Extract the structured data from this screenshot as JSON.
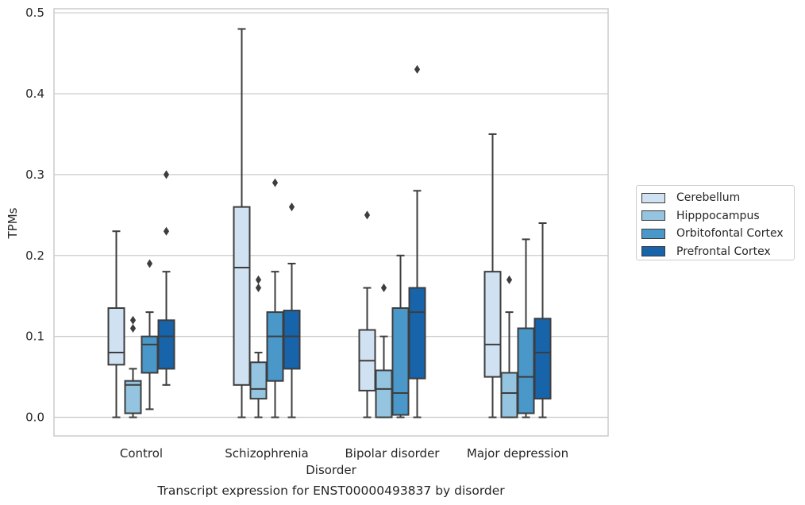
{
  "chart_data": {
    "type": "box",
    "caption": "Transcript expression for ENST00000493837 by disorder",
    "xlabel": "Disorder",
    "ylabel": "TPMs",
    "ylim": [
      -0.023,
      0.505
    ],
    "yticks": [
      0.0,
      0.1,
      0.2,
      0.3,
      0.4,
      0.5
    ],
    "ytick_labels": [
      "0.0",
      "0.1",
      "0.2",
      "0.3",
      "0.4",
      "0.5"
    ],
    "grid": "horizontal",
    "legend_position": "right-outside",
    "categories": [
      "Control",
      "Schizophrenia",
      "Bipolar disorder",
      "Major depression"
    ],
    "series": [
      {
        "name": "Cerebellum",
        "color": "#d0e1f2",
        "boxes": [
          {
            "whisker_low": 0.0,
            "q1": 0.065,
            "median": 0.08,
            "q3": 0.135,
            "whisker_high": 0.23,
            "outliers": []
          },
          {
            "whisker_low": 0.0,
            "q1": 0.04,
            "median": 0.185,
            "q3": 0.26,
            "whisker_high": 0.48,
            "outliers": []
          },
          {
            "whisker_low": 0.0,
            "q1": 0.033,
            "median": 0.07,
            "q3": 0.108,
            "whisker_high": 0.16,
            "outliers": [
              0.25
            ]
          },
          {
            "whisker_low": 0.0,
            "q1": 0.05,
            "median": 0.09,
            "q3": 0.18,
            "whisker_high": 0.35,
            "outliers": []
          }
        ]
      },
      {
        "name": "Hipppocampus",
        "color": "#94c4df",
        "boxes": [
          {
            "whisker_low": 0.0,
            "q1": 0.005,
            "median": 0.04,
            "q3": 0.045,
            "whisker_high": 0.06,
            "outliers": [
              0.11,
              0.12
            ]
          },
          {
            "whisker_low": 0.0,
            "q1": 0.023,
            "median": 0.035,
            "q3": 0.068,
            "whisker_high": 0.08,
            "outliers": [
              0.16,
              0.17
            ]
          },
          {
            "whisker_low": 0.0,
            "q1": 0.0,
            "median": 0.035,
            "q3": 0.058,
            "whisker_high": 0.1,
            "outliers": [
              0.16
            ]
          },
          {
            "whisker_low": 0.0,
            "q1": 0.0,
            "median": 0.03,
            "q3": 0.055,
            "whisker_high": 0.13,
            "outliers": [
              0.17
            ]
          }
        ]
      },
      {
        "name": "Orbitofontal Cortex",
        "color": "#4a98c9",
        "boxes": [
          {
            "whisker_low": 0.01,
            "q1": 0.055,
            "median": 0.09,
            "q3": 0.1,
            "whisker_high": 0.13,
            "outliers": [
              0.19
            ]
          },
          {
            "whisker_low": 0.0,
            "q1": 0.045,
            "median": 0.1,
            "q3": 0.13,
            "whisker_high": 0.18,
            "outliers": [
              0.29
            ]
          },
          {
            "whisker_low": 0.0,
            "q1": 0.003,
            "median": 0.03,
            "q3": 0.135,
            "whisker_high": 0.2,
            "outliers": []
          },
          {
            "whisker_low": 0.0,
            "q1": 0.005,
            "median": 0.05,
            "q3": 0.11,
            "whisker_high": 0.22,
            "outliers": []
          }
        ]
      },
      {
        "name": "Prefrontal Cortex",
        "color": "#1764ab",
        "boxes": [
          {
            "whisker_low": 0.04,
            "q1": 0.06,
            "median": 0.1,
            "q3": 0.12,
            "whisker_high": 0.18,
            "outliers": [
              0.23,
              0.3
            ]
          },
          {
            "whisker_low": 0.0,
            "q1": 0.06,
            "median": 0.1,
            "q3": 0.132,
            "whisker_high": 0.19,
            "outliers": [
              0.26
            ]
          },
          {
            "whisker_low": 0.0,
            "q1": 0.048,
            "median": 0.13,
            "q3": 0.16,
            "whisker_high": 0.28,
            "outliers": [
              0.43
            ]
          },
          {
            "whisker_low": 0.0,
            "q1": 0.023,
            "median": 0.08,
            "q3": 0.122,
            "whisker_high": 0.24,
            "outliers": []
          }
        ]
      }
    ]
  }
}
